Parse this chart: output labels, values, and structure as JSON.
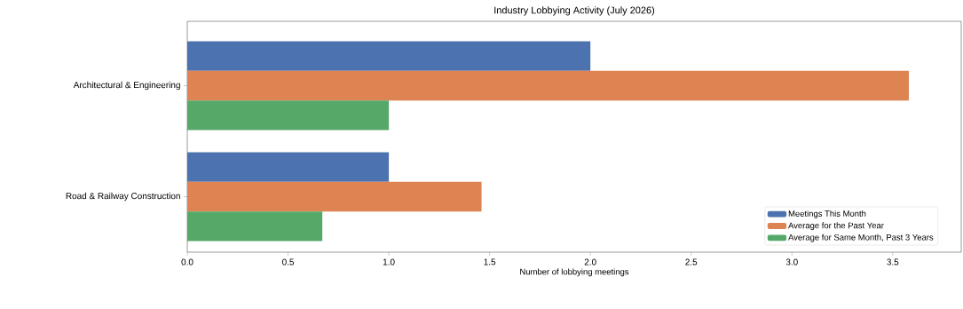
{
  "chart_data": {
    "type": "bar",
    "orientation": "horizontal",
    "title": "Industry Lobbying Activity (July 2026)",
    "xlabel": "Number of lobbying meetings",
    "categories": [
      "Architectural & Engineering",
      "Road & Railway Construction"
    ],
    "series": [
      {
        "name": "Meetings This Month",
        "color": "#4c72b0",
        "values": [
          2,
          1
        ]
      },
      {
        "name": "Average for the Past Year",
        "color": "#dd8452",
        "values": [
          3.58,
          1.46
        ]
      },
      {
        "name": "Average for Same Month, Past 3 Years",
        "color": "#55a868",
        "values": [
          1,
          0.67
        ]
      }
    ],
    "xlim": [
      0,
      3.84
    ],
    "xticks": [
      {
        "value": 0,
        "label": "0.0"
      },
      0.5,
      {
        "value": 1,
        "label": "1.0"
      },
      1.5,
      {
        "value": 2,
        "label": "2.0"
      },
      2.5,
      {
        "value": 3,
        "label": "3.0"
      },
      3.5
    ],
    "grid": false,
    "legend": "bottom right"
  }
}
